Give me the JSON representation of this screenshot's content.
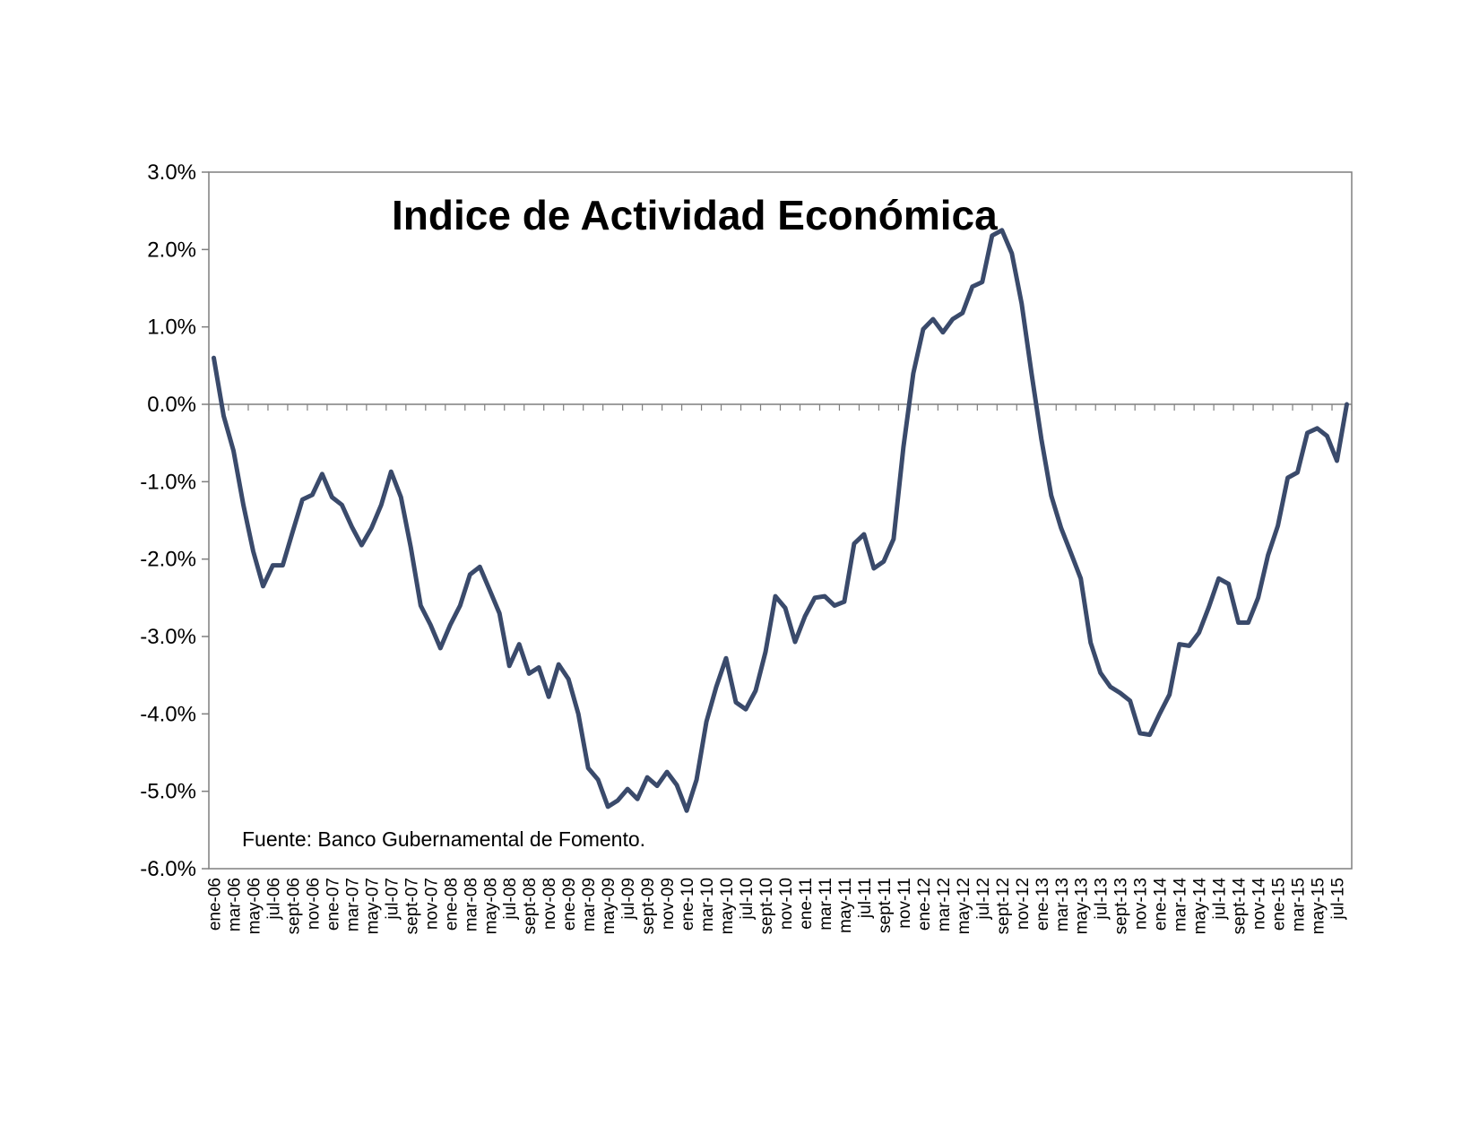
{
  "chart_data": {
    "type": "line",
    "title": "Indice de Actividad Económica",
    "annotation": "Fuente: Banco Gubernamental de Fomento.",
    "ylim": [
      -6.0,
      3.0
    ],
    "yticks": [
      "3.0%",
      "2.0%",
      "1.0%",
      "0.0%",
      "-1.0%",
      "-2.0%",
      "-3.0%",
      "-4.0%",
      "-5.0%",
      "-6.0%"
    ],
    "ytick_values": [
      3,
      2,
      1,
      0,
      -1,
      -2,
      -3,
      -4,
      -5,
      -6
    ],
    "xticks": [
      "ene-06",
      "mar-06",
      "may-06",
      "jul-06",
      "sept-06",
      "nov-06",
      "ene-07",
      "mar-07",
      "may-07",
      "jul-07",
      "sept-07",
      "nov-07",
      "ene-08",
      "mar-08",
      "may-08",
      "jul-08",
      "sept-08",
      "nov-08",
      "ene-09",
      "mar-09",
      "may-09",
      "jul-09",
      "sept-09",
      "nov-09",
      "ene-10",
      "mar-10",
      "may-10",
      "jul-10",
      "sept-10",
      "nov-10",
      "ene-11",
      "mar-11",
      "may-11",
      "jul-11",
      "sept-11",
      "nov-11",
      "ene-12",
      "mar-12",
      "may-12",
      "jul-12",
      "sept-12",
      "nov-12",
      "ene-13",
      "mar-13",
      "may-13",
      "jul-13",
      "sept-13",
      "nov-13",
      "ene-14",
      "mar-14",
      "may-14",
      "jul-14",
      "sept-14",
      "nov-14",
      "ene-15",
      "mar-15",
      "may-15",
      "jul-15"
    ],
    "grid": false,
    "line_color": "#3a4a6b",
    "series": [
      {
        "name": "",
        "values": [
          0.6,
          -0.15,
          -0.6,
          -1.3,
          -1.9,
          -2.35,
          -2.08,
          -2.08,
          -1.65,
          -1.23,
          -1.17,
          -0.9,
          -1.2,
          -1.3,
          -1.58,
          -1.82,
          -1.6,
          -1.3,
          -0.87,
          -1.2,
          -1.85,
          -2.6,
          -2.85,
          -3.15,
          -2.85,
          -2.6,
          -2.2,
          -2.1,
          -2.4,
          -2.7,
          -3.38,
          -3.1,
          -3.48,
          -3.4,
          -3.78,
          -3.36,
          -3.55,
          -4.0,
          -4.7,
          -4.85,
          -5.2,
          -5.12,
          -4.97,
          -5.1,
          -4.82,
          -4.93,
          -4.75,
          -4.92,
          -5.25,
          -4.85,
          -4.1,
          -3.65,
          -3.28,
          -3.85,
          -3.94,
          -3.7,
          -3.2,
          -2.48,
          -2.63,
          -3.07,
          -2.74,
          -2.5,
          -2.48,
          -2.6,
          -2.55,
          -1.8,
          -1.68,
          -2.12,
          -2.03,
          -1.74,
          -0.55,
          0.4,
          0.97,
          1.1,
          0.93,
          1.1,
          1.18,
          1.52,
          1.58,
          2.18,
          2.25,
          1.95,
          1.3,
          0.4,
          -0.45,
          -1.18,
          -1.6,
          -1.92,
          -2.25,
          -3.08,
          -3.47,
          -3.65,
          -3.73,
          -3.83,
          -4.25,
          -4.27,
          -4.0,
          -3.75,
          -3.1,
          -3.12,
          -2.95,
          -2.62,
          -2.25,
          -2.32,
          -2.82,
          -2.82,
          -2.5,
          -1.95,
          -1.57,
          -0.95,
          -0.88,
          -0.37,
          -0.31,
          -0.41,
          -0.73,
          0.0
        ]
      }
    ]
  }
}
